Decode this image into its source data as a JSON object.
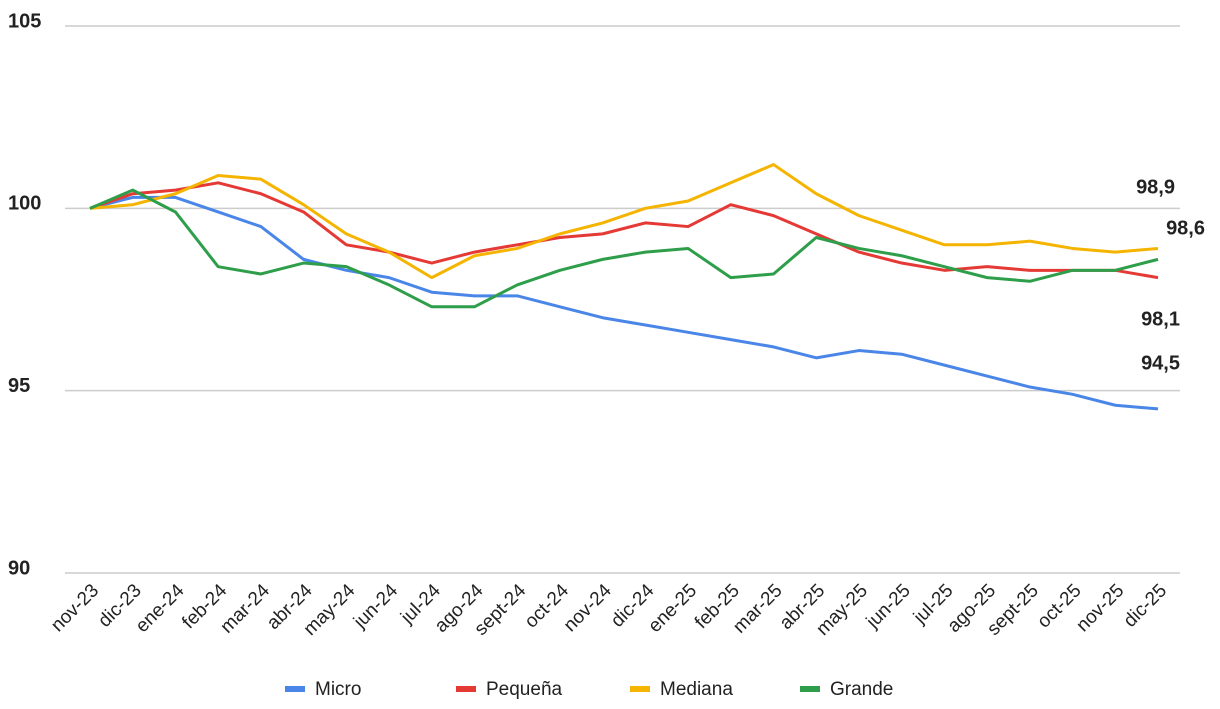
{
  "chart_data": {
    "type": "line",
    "categories": [
      "nov-23",
      "dic-23",
      "ene-24",
      "feb-24",
      "mar-24",
      "abr-24",
      "may-24",
      "jun-24",
      "jul-24",
      "ago-24",
      "sept-24",
      "oct-24",
      "nov-24",
      "dic-24",
      "ene-25",
      "feb-25",
      "mar-25",
      "abr-25",
      "may-25",
      "jun-25",
      "jul-25",
      "ago-25",
      "sept-25",
      "oct-25",
      "nov-25",
      "dic-25"
    ],
    "series": [
      {
        "name": "Micro",
        "color": "#4a86e8",
        "values": [
          100,
          100.3,
          100.3,
          99.9,
          99.5,
          98.6,
          98.3,
          98.1,
          97.7,
          97.6,
          97.6,
          97.3,
          97.0,
          96.8,
          96.6,
          96.4,
          96.2,
          95.9,
          96.1,
          96.0,
          95.7,
          95.4,
          95.1,
          94.9,
          94.6,
          94.5
        ],
        "value_labels": [
          null,
          null,
          null,
          null,
          null,
          null,
          null,
          null,
          null,
          null,
          null,
          null,
          null,
          null,
          null,
          null,
          null,
          null,
          null,
          null,
          null,
          null,
          null,
          null,
          null,
          "94,5"
        ]
      },
      {
        "name": "Pequeña",
        "color": "#e53935",
        "values": [
          100,
          100.4,
          100.5,
          100.7,
          100.4,
          99.9,
          99.0,
          98.8,
          98.5,
          98.8,
          99.0,
          99.2,
          99.3,
          99.6,
          99.5,
          100.1,
          99.8,
          99.3,
          98.8,
          98.5,
          98.3,
          98.4,
          98.3,
          98.3,
          98.3,
          98.1
        ],
        "value_labels": [
          null,
          null,
          null,
          null,
          null,
          null,
          null,
          null,
          null,
          null,
          null,
          null,
          null,
          null,
          null,
          null,
          null,
          null,
          null,
          null,
          null,
          null,
          null,
          null,
          null,
          "98,1"
        ]
      },
      {
        "name": "Mediana",
        "color": "#f4b400",
        "values": [
          100,
          100.1,
          100.4,
          100.9,
          100.8,
          100.1,
          99.3,
          98.8,
          98.1,
          98.7,
          98.9,
          99.3,
          99.6,
          100.0,
          100.2,
          100.7,
          101.2,
          100.4,
          99.8,
          99.4,
          99.0,
          99.0,
          99.1,
          98.9,
          98.8,
          98.9
        ],
        "value_labels": [
          null,
          null,
          null,
          null,
          null,
          null,
          null,
          null,
          null,
          null,
          null,
          null,
          null,
          null,
          null,
          null,
          null,
          null,
          null,
          null,
          null,
          null,
          null,
          null,
          null,
          "98,9"
        ]
      },
      {
        "name": "Grande",
        "color": "#2e9e4a",
        "values": [
          100,
          100.5,
          99.9,
          98.4,
          98.2,
          98.5,
          98.4,
          97.9,
          97.3,
          97.3,
          97.9,
          98.3,
          98.6,
          98.8,
          98.9,
          98.1,
          98.2,
          99.2,
          98.9,
          98.7,
          98.4,
          98.1,
          98.0,
          98.3,
          98.3,
          98.6
        ],
        "value_labels": [
          null,
          null,
          null,
          null,
          null,
          null,
          null,
          null,
          null,
          null,
          null,
          null,
          null,
          null,
          null,
          null,
          null,
          null,
          null,
          null,
          null,
          null,
          null,
          null,
          null,
          "98,6"
        ]
      }
    ],
    "ylim": [
      90,
      105
    ],
    "yticks": [
      90,
      95,
      100,
      105
    ],
    "grid": true,
    "legend": "bottom"
  }
}
